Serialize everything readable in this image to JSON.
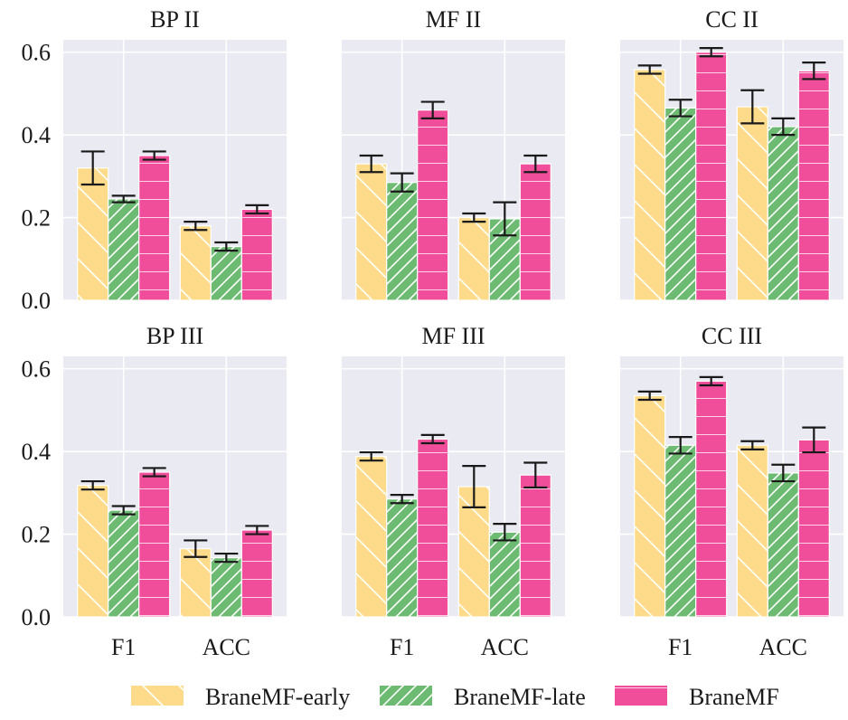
{
  "chart_data": {
    "type": "bar",
    "categories": [
      "F1",
      "ACC"
    ],
    "ylim": [
      0,
      0.63
    ],
    "yticks": [
      "0.0",
      "0.2",
      "0.4",
      "0.6"
    ],
    "grid": true,
    "legend_position": "bottom",
    "legend": [
      "BraneMF-early",
      "BraneMF-late",
      "BraneMF"
    ],
    "colors": [
      "#fddb8b",
      "#6dbb72",
      "#f04d9a"
    ],
    "panels": [
      {
        "title": "BP II",
        "series": [
          {
            "name": "BraneMF-early",
            "values": [
              0.32,
              0.18
            ],
            "errors": [
              0.04,
              0.01
            ]
          },
          {
            "name": "BraneMF-late",
            "values": [
              0.245,
              0.13
            ],
            "errors": [
              0.008,
              0.01
            ]
          },
          {
            "name": "BraneMF",
            "values": [
              0.35,
              0.22
            ],
            "errors": [
              0.01,
              0.01
            ]
          }
        ]
      },
      {
        "title": "MF II",
        "series": [
          {
            "name": "BraneMF-early",
            "values": [
              0.33,
              0.2
            ],
            "errors": [
              0.02,
              0.01
            ]
          },
          {
            "name": "BraneMF-late",
            "values": [
              0.285,
              0.197
            ],
            "errors": [
              0.022,
              0.04
            ]
          },
          {
            "name": "BraneMF",
            "values": [
              0.46,
              0.33
            ],
            "errors": [
              0.02,
              0.02
            ]
          }
        ]
      },
      {
        "title": "CC II",
        "series": [
          {
            "name": "BraneMF-early",
            "values": [
              0.558,
              0.468
            ],
            "errors": [
              0.01,
              0.04
            ]
          },
          {
            "name": "BraneMF-late",
            "values": [
              0.465,
              0.42
            ],
            "errors": [
              0.02,
              0.02
            ]
          },
          {
            "name": "BraneMF",
            "values": [
              0.6,
              0.555
            ],
            "errors": [
              0.01,
              0.02
            ]
          }
        ]
      },
      {
        "title": "BP III",
        "series": [
          {
            "name": "BraneMF-early",
            "values": [
              0.318,
              0.165
            ],
            "errors": [
              0.01,
              0.02
            ]
          },
          {
            "name": "BraneMF-late",
            "values": [
              0.258,
              0.143
            ],
            "errors": [
              0.01,
              0.01
            ]
          },
          {
            "name": "BraneMF",
            "values": [
              0.35,
              0.21
            ],
            "errors": [
              0.01,
              0.01
            ]
          }
        ]
      },
      {
        "title": "MF III",
        "series": [
          {
            "name": "BraneMF-early",
            "values": [
              0.388,
              0.315
            ],
            "errors": [
              0.01,
              0.05
            ]
          },
          {
            "name": "BraneMF-late",
            "values": [
              0.285,
              0.205
            ],
            "errors": [
              0.01,
              0.02
            ]
          },
          {
            "name": "BraneMF",
            "values": [
              0.43,
              0.343
            ],
            "errors": [
              0.01,
              0.03
            ]
          }
        ]
      },
      {
        "title": "CC III",
        "series": [
          {
            "name": "BraneMF-early",
            "values": [
              0.535,
              0.415
            ],
            "errors": [
              0.01,
              0.01
            ]
          },
          {
            "name": "BraneMF-late",
            "values": [
              0.415,
              0.348
            ],
            "errors": [
              0.02,
              0.02
            ]
          },
          {
            "name": "BraneMF",
            "values": [
              0.57,
              0.428
            ],
            "errors": [
              0.01,
              0.03
            ]
          }
        ]
      }
    ]
  }
}
